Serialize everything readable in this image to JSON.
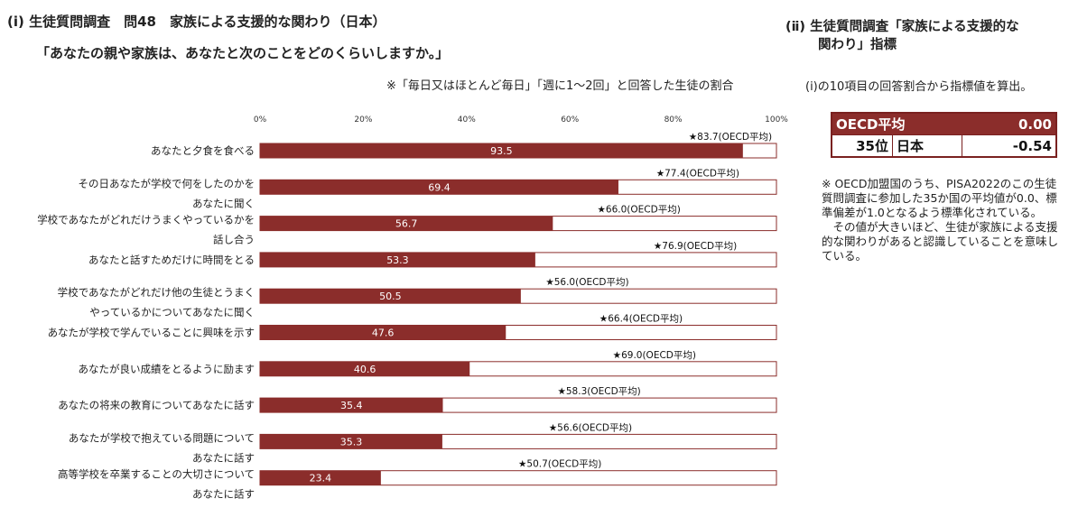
{
  "left_title": "(ⅰ) 生徒質問調査　問48　家族による支援的な関わり（日本）",
  "left_subtitle": "「あなたの親や家族は、あなたと次のことをどのくらいしますか。」",
  "left_note": "※「毎日又はほとんど毎日」「週に1～2回」と回答した生徒の割合",
  "right_title_line1": "(ⅱ) 生徒質問調査「家族による支援的な",
  "right_title_line2": "関わり」指標",
  "right_note": "(ⅰ)の10項目の回答割合から指標値を算出。",
  "score_table": {
    "oecd_label": "OECD平均",
    "oecd_value": "0.00",
    "japan_rank": "35位",
    "japan_label": "日本",
    "japan_value": "-0.54"
  },
  "footnote": {
    "line1": "※ OECD加盟国のうち、PISA2022のこの生徒質問調査に参加した35か国の平均値が0.0、標準偏差が1.0となるよう標準化されている。",
    "line2": "その値が大きいほど、生徒が家族による支援的な関わりがあると認識していることを意味している。"
  },
  "colors": {
    "bar": "#8b2d2b",
    "bar_outline": "#8b2d2b"
  },
  "chart_data": {
    "type": "bar",
    "orientation": "horizontal",
    "xlim": [
      0,
      100
    ],
    "ticks": [
      "0%",
      "20%",
      "40%",
      "60%",
      "80%",
      "100%"
    ],
    "oecd_suffix": "(OECD平均)",
    "categories": [
      [
        "あなたと夕食を食べる"
      ],
      [
        "その日あなたが学校で何をしたのかを",
        "あなたに聞く"
      ],
      [
        "学校であなたがどれだけうまくやっているかを",
        "話し合う"
      ],
      [
        "あなたと話すためだけに時間をとる"
      ],
      [
        "学校であなたがどれだけ他の生徒とうまく",
        "やっているかについてあなたに聞く"
      ],
      [
        "あなたが学校で学んでいることに興味を示す"
      ],
      [
        "あなたが良い成績をとるように励ます"
      ],
      [
        "あなたの将来の教育についてあなたに話す"
      ],
      [
        "あなたが学校で抱えている問題について",
        "あなたに話す"
      ],
      [
        "高等学校を卒業することの大切さについて",
        "あなたに話す"
      ]
    ],
    "series": [
      {
        "name": "日本",
        "values": [
          93.5,
          69.4,
          56.7,
          53.3,
          50.5,
          47.6,
          40.6,
          35.4,
          35.3,
          23.4
        ]
      },
      {
        "name": "OECD平均",
        "values": [
          83.7,
          77.4,
          66.0,
          76.9,
          56.0,
          66.4,
          69.0,
          58.3,
          56.6,
          50.7
        ]
      }
    ]
  }
}
